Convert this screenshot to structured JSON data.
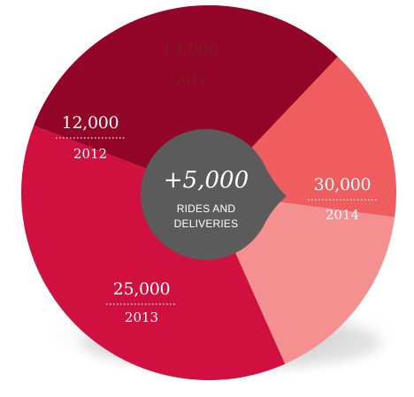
{
  "chart_data": {
    "type": "pie",
    "categories": [
      "2014",
      "2013",
      "2012",
      "2011"
    ],
    "values": [
      30000,
      25000,
      12000,
      13000
    ],
    "value_labels": [
      "30,000",
      "25,000",
      "12,000",
      "13,000"
    ],
    "colors": [
      "#d0103f",
      "#920428",
      "#ef5d5e",
      "#f4908f"
    ],
    "title": "",
    "center": {
      "headline": "+5,000",
      "line1": "RIDES AND",
      "line2": "DELIVERIES",
      "color": "#5b5b5b"
    },
    "legend": "none"
  }
}
